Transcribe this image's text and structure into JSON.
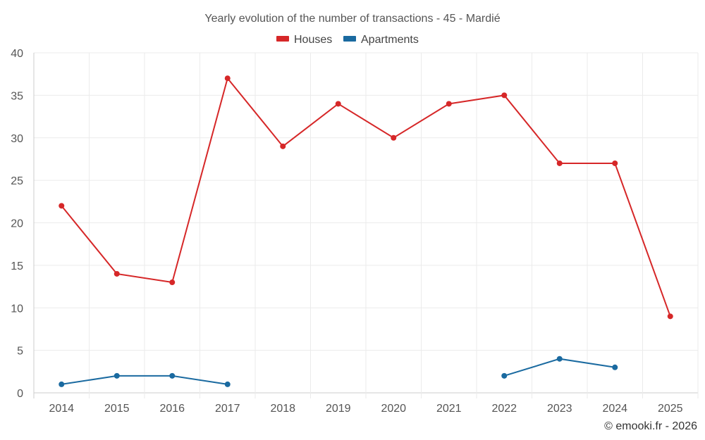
{
  "chart_data": {
    "type": "line",
    "title": "Yearly evolution of the number of transactions - 45 - Mardié",
    "categories": [
      "2014",
      "2015",
      "2016",
      "2017",
      "2018",
      "2019",
      "2020",
      "2021",
      "2022",
      "2023",
      "2024",
      "2025"
    ],
    "series": [
      {
        "name": "Houses",
        "color": "#d62728",
        "values": [
          22,
          14,
          13,
          37,
          29,
          34,
          30,
          34,
          35,
          27,
          27,
          9
        ]
      },
      {
        "name": "Apartments",
        "color": "#1a6aa0",
        "values": [
          1,
          2,
          2,
          1,
          null,
          null,
          null,
          null,
          2,
          4,
          3,
          null
        ]
      }
    ],
    "y_ticks": [
      "0",
      "5",
      "10",
      "15",
      "20",
      "25",
      "30",
      "35",
      "40"
    ],
    "ylim": [
      0,
      40
    ],
    "xlabel": "",
    "ylabel": "",
    "grid": true,
    "legend_position": "top-center"
  },
  "credit": "© emooki.fr - 2026"
}
